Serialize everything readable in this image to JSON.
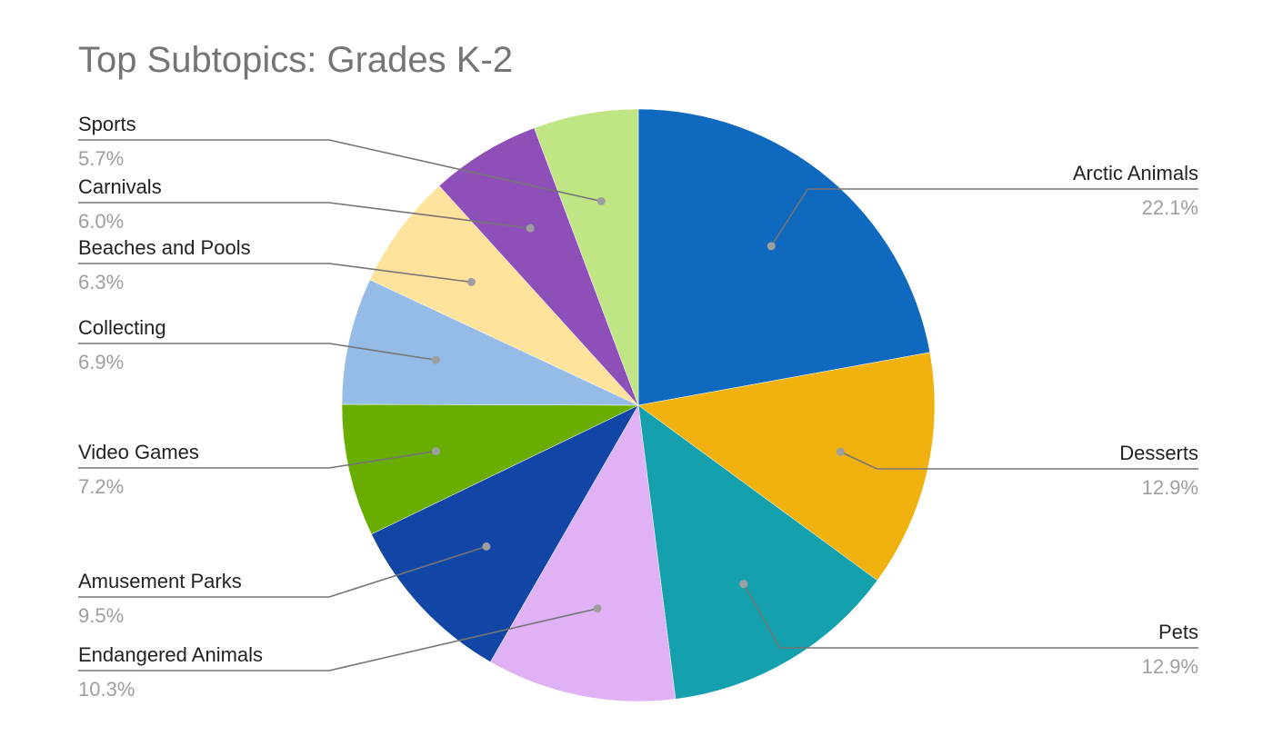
{
  "chart_data": {
    "type": "pie",
    "title": "Top Subtopics: Grades K-2",
    "slices": [
      {
        "label": "Arctic Animals",
        "value": 22.1,
        "display": "22.1%",
        "color": "#0F6ABF"
      },
      {
        "label": "Desserts",
        "value": 12.9,
        "display": "12.9%",
        "color": "#F1B20F"
      },
      {
        "label": "Pets",
        "value": 12.9,
        "display": "12.9%",
        "color": "#14A1AD"
      },
      {
        "label": "Endangered Animals",
        "value": 10.3,
        "display": "10.3%",
        "color": "#E0B1F4"
      },
      {
        "label": "Amusement Parks",
        "value": 9.5,
        "display": "9.5%",
        "color": "#1145A6"
      },
      {
        "label": "Video Games",
        "value": 7.2,
        "display": "7.2%",
        "color": "#69AD00"
      },
      {
        "label": "Collecting",
        "value": 6.9,
        "display": "6.9%",
        "color": "#94BCE7"
      },
      {
        "label": "Beaches and Pools",
        "value": 6.3,
        "display": "6.3%",
        "color": "#FFE29B"
      },
      {
        "label": "Carnivals",
        "value": 6.0,
        "display": "6.0%",
        "color": "#8E4FB9"
      },
      {
        "label": "Sports",
        "value": 5.7,
        "display": "5.7%",
        "color": "#C0E585"
      }
    ],
    "legend": "labels-with-leader-lines"
  }
}
